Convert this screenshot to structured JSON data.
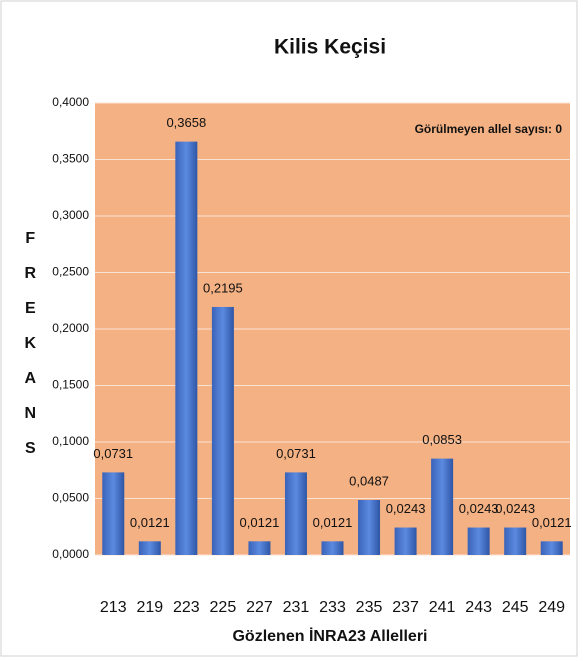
{
  "chart_data": {
    "type": "bar",
    "title": "Kilis  Keçisi",
    "y_label": "FREKANS",
    "x_label": "Gözlenen İNRA23  Allelleri",
    "annotation": "Görülmeyen allel sayısı: 0",
    "categories": [
      "213",
      "219",
      "223",
      "225",
      "227",
      "231",
      "233",
      "235",
      "237",
      "241",
      "243",
      "245",
      "249"
    ],
    "values": [
      0.0731,
      0.0121,
      0.3658,
      0.2195,
      0.0121,
      0.0731,
      0.0121,
      0.0487,
      0.0243,
      0.0853,
      0.0243,
      0.0243,
      0.0121
    ],
    "value_labels": [
      "0,0731",
      "0,0121",
      "0,3658",
      "0,2195",
      "0,0121",
      "0,0731",
      "0,0121",
      "0,0487",
      "0,0243",
      "0,0853",
      "0,0243",
      "0,0243",
      "0,0121"
    ],
    "color": "#4472c4",
    "ylim": [
      0,
      0.4
    ],
    "yticks": [
      {
        "value": 0,
        "label": "0,0000"
      },
      {
        "value": 0.05,
        "label": "0,0500"
      },
      {
        "value": 0.1,
        "label": "0,1000"
      },
      {
        "value": 0.15,
        "label": "0,1500"
      },
      {
        "value": 0.2,
        "label": "0,2000"
      },
      {
        "value": 0.25,
        "label": "0,2500"
      },
      {
        "value": 0.3,
        "label": "0,3000"
      },
      {
        "value": 0.35,
        "label": "0,3500"
      },
      {
        "value": 0.4,
        "label": "0,4000"
      }
    ],
    "grid": true
  }
}
